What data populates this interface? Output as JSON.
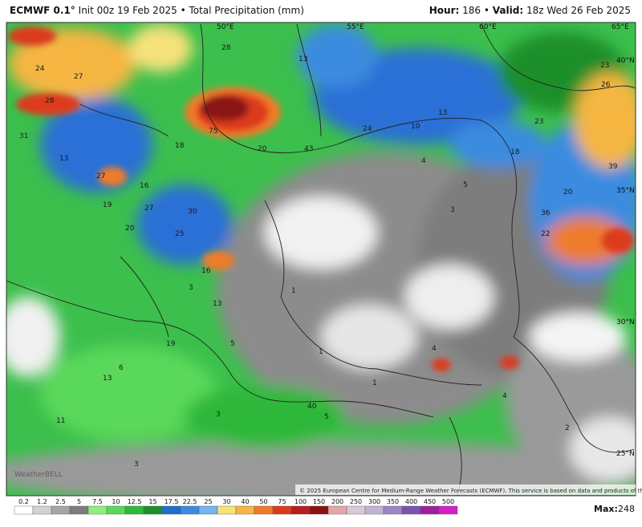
{
  "header": {
    "model": "ECMWF 0.1°",
    "init": "Init 00z 19 Feb 2025",
    "separator": "•",
    "field": "Total Precipitation (mm)",
    "hour_label": "Hour:",
    "hour": "186",
    "valid_label": "Valid:",
    "valid": "18z Wed 26 Feb 2025"
  },
  "map": {
    "lon_labels": [
      "50°E",
      "55°E",
      "60°E",
      "65°E"
    ],
    "lat_labels": [
      "40°N",
      "35°N",
      "30°N",
      "25°N"
    ],
    "value_labels": [
      "24",
      "27",
      "28",
      "31",
      "13",
      "27",
      "19",
      "20",
      "27",
      "30",
      "25",
      "16",
      "18",
      "75",
      "20",
      "43",
      "24",
      "10",
      "13",
      "13",
      "28",
      "23",
      "23",
      "26",
      "39",
      "20",
      "36",
      "22",
      "18",
      "3",
      "5",
      "4",
      "13",
      "16",
      "19",
      "5",
      "6",
      "13",
      "11",
      "3",
      "3",
      "40",
      "5",
      "2",
      "1",
      "4",
      "3",
      "1",
      "4",
      "1"
    ],
    "watermark": "WeatherBELL",
    "credit": "© 2025 European Centre for Medium-Range Weather Forecasts (ECMWF). This service is based on data and products of the ECMWF."
  },
  "legend": {
    "items": [
      {
        "label": "0.2",
        "color": "#ffffff"
      },
      {
        "label": "1.2",
        "color": "#d2d2d2"
      },
      {
        "label": "2.5",
        "color": "#a5a5a5"
      },
      {
        "label": "5",
        "color": "#7d7d7d"
      },
      {
        "label": "7.5",
        "color": "#8ef07a"
      },
      {
        "label": "10",
        "color": "#5ad85a"
      },
      {
        "label": "12.5",
        "color": "#2fb83a"
      },
      {
        "label": "15",
        "color": "#1a8f2a"
      },
      {
        "label": "17.5",
        "color": "#1d6fd0"
      },
      {
        "label": "22.5",
        "color": "#3b8be0"
      },
      {
        "label": "25",
        "color": "#74b4f0"
      },
      {
        "label": "30",
        "color": "#f7e27a"
      },
      {
        "label": "40",
        "color": "#f5b642"
      },
      {
        "label": "50",
        "color": "#ee7b2a"
      },
      {
        "label": "75",
        "color": "#dd3a1f"
      },
      {
        "label": "100",
        "color": "#b81d1d"
      },
      {
        "label": "150",
        "color": "#8a1212"
      },
      {
        "label": "200",
        "color": "#e5a6a6"
      },
      {
        "label": "250",
        "color": "#d9c8d9"
      },
      {
        "label": "300",
        "color": "#c2b2d6"
      },
      {
        "label": "350",
        "color": "#9c86c4"
      },
      {
        "label": "400",
        "color": "#7a55b0"
      },
      {
        "label": "450",
        "color": "#a01ea0"
      },
      {
        "label": "500",
        "color": "#d21fc8"
      }
    ],
    "max_label": "Max:",
    "max": "248"
  }
}
